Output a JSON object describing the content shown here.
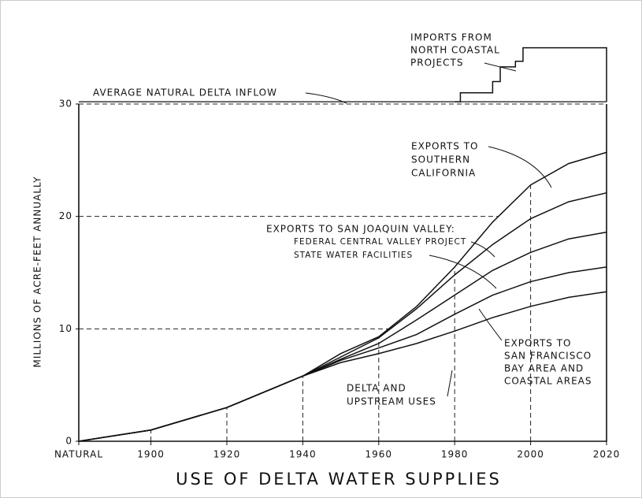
{
  "chart_data": {
    "type": "stacked_line",
    "title": "USE OF DELTA WATER SUPPLIES",
    "y_label": "MILLIONS OF ACRE-FEET ANNUALLY",
    "x": [
      1881,
      1900,
      1920,
      1940,
      1950,
      1960,
      1970,
      1980,
      1990,
      2000,
      2010,
      2020
    ],
    "series": [
      {
        "label": [
          "DELTA AND",
          "UPSTREAM USES"
        ],
        "color": "#111111",
        "values": [
          0,
          1,
          3,
          5.8,
          7,
          7.8,
          8.7,
          9.8,
          11,
          12,
          12.8,
          13.3
        ]
      },
      {
        "label": [
          "EXPORTS TO",
          "SAN FRANCISCO",
          "BAY AREA AND",
          "COASTAL AREAS"
        ],
        "color": "#111111",
        "values": [
          0,
          0,
          0,
          0,
          0.2,
          0.5,
          0.8,
          1.5,
          2,
          2.2,
          2.2,
          2.2
        ]
      },
      {
        "label": [
          "STATE WATER FACILITIES"
        ],
        "color": "#111111",
        "values": [
          0,
          0,
          0,
          0,
          0.1,
          0.4,
          1.3,
          1.7,
          2.2,
          2.6,
          3,
          3.1
        ]
      },
      {
        "label": [
          "FEDERAL CENTRAL VALLEY PROJECT"
        ],
        "color": "#111111",
        "values": [
          0,
          0,
          0,
          0,
          0.2,
          0.5,
          1,
          1.8,
          2.3,
          3,
          3.3,
          3.5
        ]
      },
      {
        "label": [
          "EXPORTS TO",
          "SOUTHERN",
          "CALIFORNIA"
        ],
        "color": "#111111",
        "values": [
          0,
          0,
          0,
          0,
          0.3,
          0.1,
          0.2,
          0.7,
          2,
          3,
          3.4,
          3.6
        ]
      }
    ],
    "group_label": "EXPORTS TO SAN JOAQUIN VALLEY:",
    "inflow": {
      "label": "AVERAGE NATURAL DELTA INFLOW",
      "value": 30.2
    },
    "imports": {
      "label": [
        "IMPORTS FROM",
        "NORTH COASTAL",
        "PROJECTS"
      ],
      "x": [
        1980,
        1981.5,
        1981.5,
        1990,
        1990,
        1992,
        1992,
        1996,
        1996,
        1998,
        1998,
        2020,
        2020
      ],
      "values": [
        30.2,
        30.2,
        31,
        31,
        32,
        32,
        33.3,
        33.3,
        33.8,
        33.8,
        35,
        35,
        30.2
      ]
    },
    "xlim": [
      1881,
      2020
    ],
    "xticks": [
      {
        "value": 1881,
        "label": "NATURAL"
      },
      1900,
      1920,
      1940,
      1960,
      1980,
      2000,
      2020
    ],
    "ylim": [
      0,
      30
    ],
    "yticks": [
      0,
      10,
      20,
      30
    ]
  }
}
